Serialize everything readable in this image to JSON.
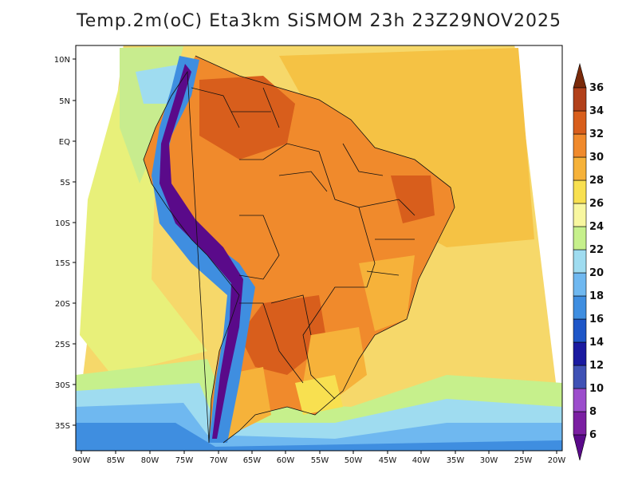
{
  "title": "Temp.2m(oC) Eta3km SiSMOM 23h 23Z29NOV2025",
  "latitude_labels": [
    "10N",
    "5N",
    "EQ",
    "5S",
    "10S",
    "15S",
    "20S",
    "25S",
    "30S",
    "35S"
  ],
  "longitude_labels": [
    "90W",
    "85W",
    "80W",
    "75W",
    "70W",
    "65W",
    "60W",
    "55W",
    "50W",
    "45W",
    "40W",
    "35W",
    "30W",
    "25W",
    "20W"
  ],
  "colorbar": {
    "levels": [
      "6",
      "8",
      "10",
      "12",
      "14",
      "16",
      "18",
      "20",
      "22",
      "24",
      "26",
      "28",
      "30",
      "32",
      "34",
      "36"
    ],
    "colors": [
      "#5a0a8a",
      "#7b1fa2",
      "#9c4dcc",
      "#3f51b5",
      "#1a1aa0",
      "#1e56c8",
      "#3f8ee0",
      "#6fb8f0",
      "#9fdcf0",
      "#c6f08c",
      "#f8f7a0",
      "#f8e050",
      "#f6b23a",
      "#f08a2c",
      "#d85e1c",
      "#b2401a",
      "#7a2a0a"
    ]
  }
}
